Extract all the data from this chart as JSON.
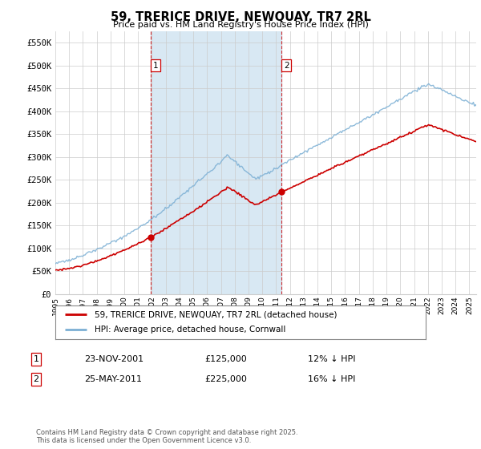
{
  "title": "59, TRERICE DRIVE, NEWQUAY, TR7 2RL",
  "subtitle": "Price paid vs. HM Land Registry's House Price Index (HPI)",
  "ylim": [
    0,
    575000
  ],
  "yticks": [
    0,
    50000,
    100000,
    150000,
    200000,
    250000,
    300000,
    350000,
    400000,
    450000,
    500000,
    550000
  ],
  "ytick_labels": [
    "£0",
    "£50K",
    "£100K",
    "£150K",
    "£200K",
    "£250K",
    "£300K",
    "£350K",
    "£400K",
    "£450K",
    "£500K",
    "£550K"
  ],
  "hpi_color": "#7bafd4",
  "hpi_fill_color": "#d8e8f3",
  "price_color": "#cc0000",
  "vline_color": "#cc0000",
  "grid_color": "#cccccc",
  "background_color": "#ffffff",
  "legend_label_price": "59, TRERICE DRIVE, NEWQUAY, TR7 2RL (detached house)",
  "legend_label_hpi": "HPI: Average price, detached house, Cornwall",
  "transaction1_date": "23-NOV-2001",
  "transaction1_price": "£125,000",
  "transaction1_hpi": "12% ↓ HPI",
  "transaction1_x": 2001.9,
  "transaction1_y": 125000,
  "transaction2_date": "25-MAY-2011",
  "transaction2_price": "£225,000",
  "transaction2_hpi": "16% ↓ HPI",
  "transaction2_x": 2011.4,
  "transaction2_y": 225000,
  "footer": "Contains HM Land Registry data © Crown copyright and database right 2025.\nThis data is licensed under the Open Government Licence v3.0.",
  "xmin": 1995,
  "xmax": 2025.5
}
